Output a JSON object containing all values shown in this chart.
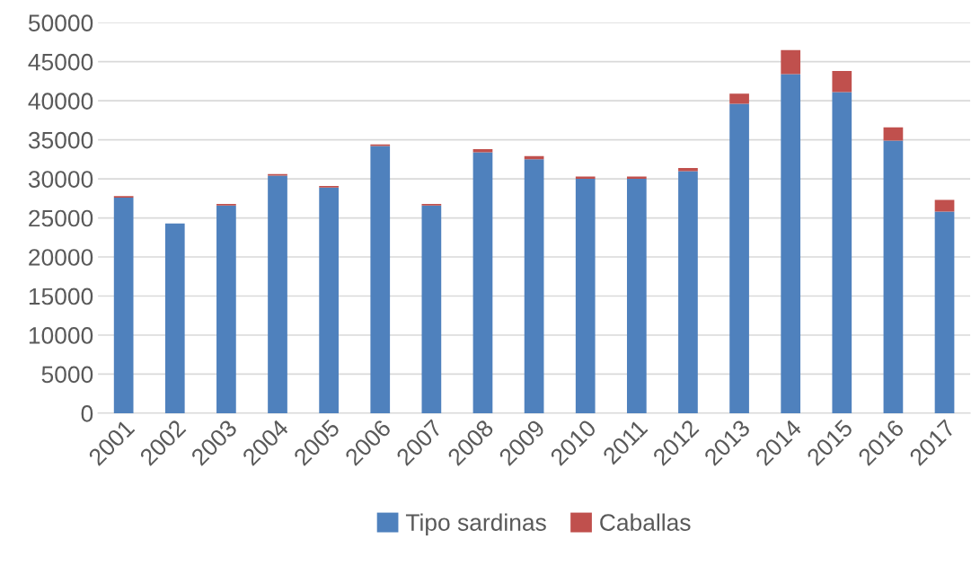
{
  "chart_data": {
    "type": "bar",
    "stacked": true,
    "categories": [
      "2001",
      "2002",
      "2003",
      "2004",
      "2005",
      "2006",
      "2007",
      "2008",
      "2009",
      "2010",
      "2011",
      "2012",
      "2013",
      "2014",
      "2015",
      "2016",
      "2017"
    ],
    "series": [
      {
        "name": "Tipo sardinas",
        "color": "#4f81bd",
        "values": [
          27600,
          24300,
          26600,
          30400,
          28900,
          34200,
          26600,
          33400,
          32500,
          30000,
          30000,
          31000,
          39600,
          43400,
          41100,
          34900,
          25800
        ]
      },
      {
        "name": "Caballas",
        "color": "#c0504d",
        "values": [
          200,
          0,
          200,
          200,
          200,
          200,
          200,
          400,
          400,
          300,
          300,
          400,
          1300,
          3100,
          2700,
          1700,
          1500
        ]
      }
    ],
    "ylim": [
      0,
      50000
    ],
    "yticks": [
      0,
      5000,
      10000,
      15000,
      20000,
      25000,
      30000,
      35000,
      40000,
      45000,
      50000
    ],
    "grid": "y",
    "legend": "bottom"
  }
}
